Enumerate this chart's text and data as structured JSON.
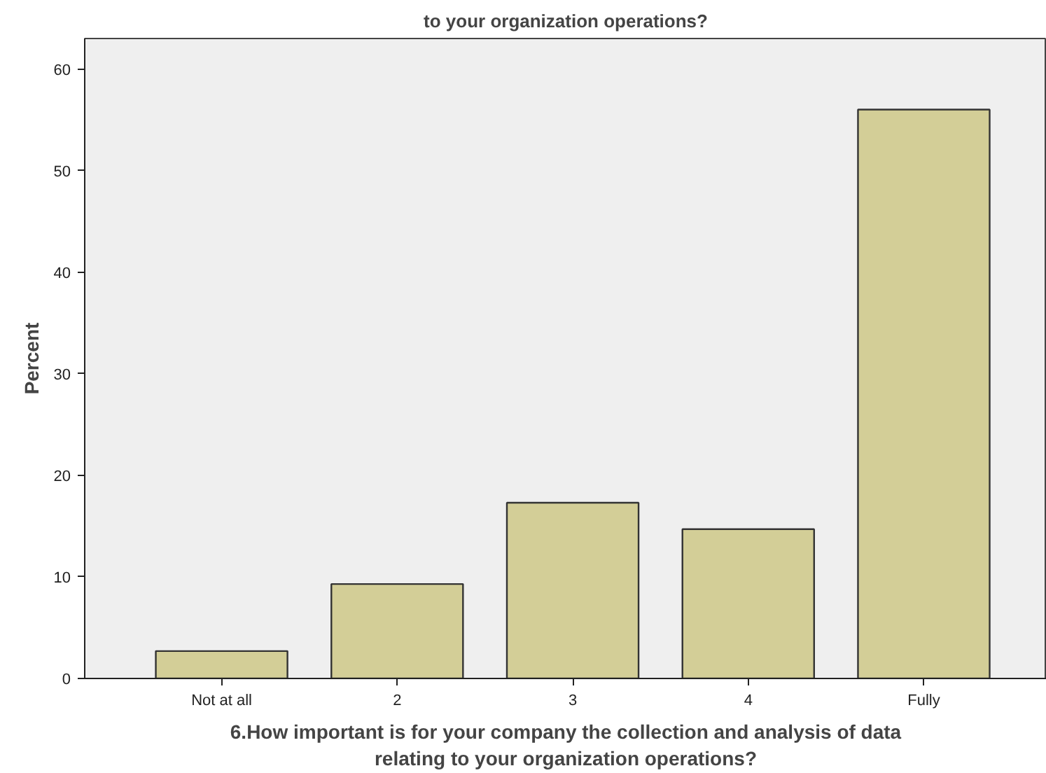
{
  "chart_data": {
    "type": "bar",
    "title": "to your organization operations?",
    "xlabel": "6.How important is for your company the collection and analysis of data\nrelating to your organization operations?",
    "ylabel": "Percent",
    "categories": [
      "Not at all",
      "2",
      "3",
      "4",
      "Fully"
    ],
    "values": [
      2.7,
      9.3,
      17.3,
      14.7,
      56.0
    ],
    "color": "#d3ce97",
    "ylim": [
      0,
      63
    ],
    "yticks": [
      0,
      10,
      20,
      30,
      40,
      50,
      60
    ],
    "grid": false
  }
}
